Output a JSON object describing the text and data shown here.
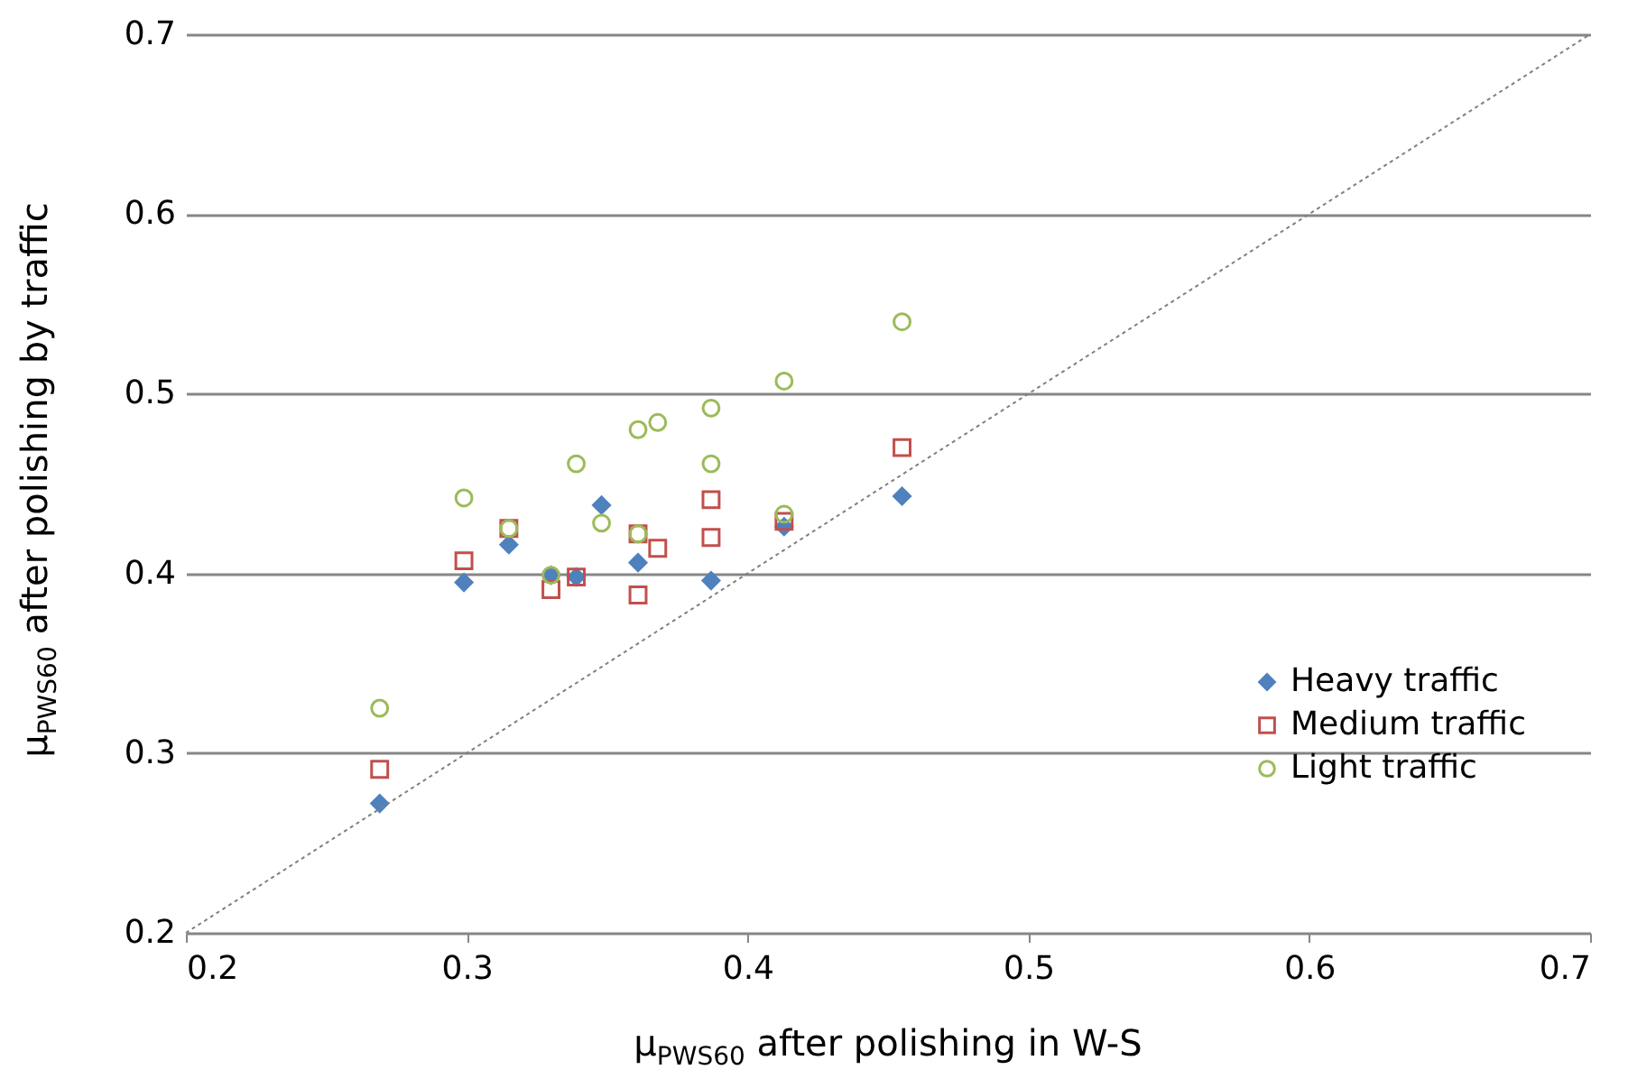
{
  "chart_data": {
    "type": "scatter",
    "xlabel": "μ$_{PWS60}$ after polishing in W-S",
    "ylabel": "μ$_{PWS60}$ after polishing by traffic",
    "xlim": [
      0.2,
      0.7
    ],
    "xticks": [
      0.2,
      0.3,
      0.4,
      0.5,
      0.6,
      0.7
    ],
    "ylim": [
      0.2,
      0.7
    ],
    "yticks": [
      0.2,
      0.3,
      0.4,
      0.5,
      0.6,
      0.7
    ],
    "grid": "y",
    "legend": "right",
    "series": [
      {
        "name": "Heavy traffic",
        "color": "#4f81bd",
        "marker": "diamond",
        "x": [
          0.269,
          0.299,
          0.315,
          0.33,
          0.339,
          0.348,
          0.361,
          0.387,
          0.413,
          0.455
        ],
        "values": [
          0.272,
          0.395,
          0.416,
          0.399,
          0.398,
          0.438,
          0.406,
          0.396,
          0.426,
          0.443
        ]
      },
      {
        "name": "Medium traffic",
        "color": "#c0504d",
        "marker": "square",
        "x": [
          0.269,
          0.299,
          0.315,
          0.33,
          0.339,
          0.361,
          0.361,
          0.368,
          0.387,
          0.387,
          0.413,
          0.455
        ],
        "values": [
          0.291,
          0.407,
          0.425,
          0.391,
          0.398,
          0.388,
          0.422,
          0.414,
          0.42,
          0.441,
          0.429,
          0.47
        ]
      },
      {
        "name": "Light traffic",
        "color": "#9bbb59",
        "marker": "circle",
        "x": [
          0.269,
          0.299,
          0.315,
          0.33,
          0.339,
          0.348,
          0.361,
          0.361,
          0.368,
          0.387,
          0.387,
          0.413,
          0.413,
          0.455
        ],
        "values": [
          0.325,
          0.442,
          0.425,
          0.399,
          0.461,
          0.428,
          0.48,
          0.422,
          0.484,
          0.461,
          0.492,
          0.507,
          0.433,
          0.54
        ]
      },
      {
        "type": "line",
        "color": "#808080",
        "line_style": "dotted",
        "x": [
          0.2,
          0.7
        ],
        "values": [
          0.2,
          0.7
        ]
      }
    ]
  }
}
